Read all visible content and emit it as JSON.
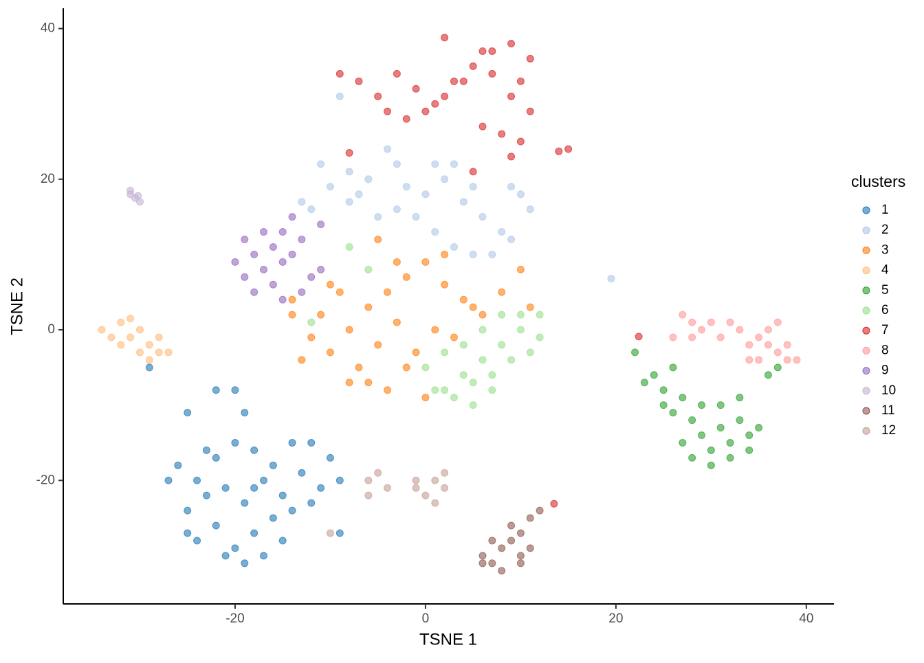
{
  "chart_data": {
    "type": "scatter",
    "x_label": "TSNE 1",
    "y_label": "TSNE 2",
    "legend_title": "clusters",
    "xlim": [
      -38.05,
      42.9
    ],
    "ylim": [
      -36.4,
      42.7
    ],
    "xticks": [
      -20,
      0,
      20,
      40
    ],
    "yticks": [
      -20,
      0,
      20,
      40
    ],
    "grid": false,
    "legend": "right",
    "series": [
      {
        "name": "1",
        "color": "#1f77b4",
        "x": [
          -26,
          -24,
          -22,
          -20,
          -18,
          -16,
          -14,
          -12,
          -10,
          -25,
          -23,
          -21,
          -19,
          -17,
          -15,
          -13,
          -11,
          -9,
          -24,
          -22,
          -20,
          -18,
          -16,
          -14,
          -12,
          -21,
          -19,
          -17,
          -25,
          -22,
          -20,
          -25,
          -9,
          -27,
          -23,
          -18,
          -15,
          -19,
          -29
        ],
        "y": [
          -18,
          -20,
          -17,
          -15,
          -16,
          -18,
          -15,
          -15,
          -17,
          -24,
          -22,
          -21,
          -23,
          -20,
          -22,
          -19,
          -21,
          -20,
          -28,
          -26,
          -29,
          -27,
          -25,
          -24,
          -23,
          -30,
          -31,
          -30,
          -27,
          -8,
          -8,
          -11,
          -27,
          -20,
          -16,
          -21,
          -28,
          -11,
          -5
        ]
      },
      {
        "name": "2",
        "color": "#aec7e8",
        "x": [
          -12,
          -10,
          -8,
          -6,
          -4,
          -3,
          -2,
          0,
          2,
          4,
          6,
          8,
          10,
          -5,
          -1,
          1,
          3,
          5,
          7,
          9,
          -11,
          -13,
          -7,
          -3,
          1,
          3,
          5,
          9,
          11,
          -9,
          19.5,
          -8
        ],
        "y": [
          16,
          19,
          21,
          20,
          24,
          22,
          19,
          18,
          20,
          17,
          15,
          13,
          18,
          15,
          15,
          13,
          11,
          10,
          10,
          12,
          22,
          17,
          18,
          16,
          22,
          22,
          19,
          19,
          16,
          31,
          6.8,
          17
        ]
      },
      {
        "name": "3",
        "color": "#ff7f0e",
        "x": [
          -14,
          -12,
          -10,
          -8,
          -6,
          -4,
          -2,
          0,
          2,
          4,
          6,
          8,
          -13,
          -11,
          -9,
          -7,
          -5,
          -3,
          -1,
          1,
          3,
          5,
          -6,
          -4,
          -2,
          0,
          -8,
          -10,
          10,
          -3,
          2,
          -14,
          -5,
          11
        ],
        "y": [
          2,
          -1,
          -3,
          0,
          3,
          5,
          7,
          9,
          6,
          4,
          2,
          5,
          -4,
          2,
          5,
          -5,
          -2,
          1,
          -3,
          0,
          -1,
          3,
          -7,
          -8,
          -5,
          -9,
          -7,
          6,
          8,
          9,
          10,
          4,
          12,
          3
        ]
      },
      {
        "name": "4",
        "color": "#ffbb78",
        "x": [
          -34,
          -32,
          -31,
          -30,
          -29,
          -28,
          -30,
          -32,
          -33,
          -29,
          -27,
          -31,
          -28
        ],
        "y": [
          0,
          1,
          -1,
          0,
          -2,
          -3,
          -3,
          -2,
          -1,
          -4,
          -3,
          1.5,
          -1
        ]
      },
      {
        "name": "5",
        "color": "#2ca02c",
        "x": [
          22,
          24,
          25,
          26,
          27,
          28,
          29,
          30,
          31,
          32,
          33,
          34,
          35,
          26,
          28,
          30,
          32,
          27,
          29,
          31,
          33,
          36,
          37,
          23,
          25,
          34
        ],
        "y": [
          -3,
          -6,
          -8,
          -5,
          -9,
          -12,
          -14,
          -16,
          -13,
          -15,
          -12,
          -14,
          -13,
          -11,
          -17,
          -18,
          -17,
          -15,
          -10,
          -10,
          -9,
          -6,
          -5,
          -7,
          -10,
          -16
        ]
      },
      {
        "name": "6",
        "color": "#98df8a",
        "x": [
          0,
          2,
          4,
          6,
          8,
          10,
          12,
          1,
          3,
          5,
          7,
          9,
          11,
          6,
          8,
          10,
          4,
          2,
          -8,
          -6,
          12,
          5,
          7,
          -12
        ],
        "y": [
          -5,
          -3,
          -6,
          -4,
          -2,
          0,
          -1,
          -8,
          -9,
          -7,
          -6,
          -4,
          -3,
          0,
          2,
          2,
          -2,
          -8,
          11,
          8,
          2,
          -10,
          -8,
          1
        ]
      },
      {
        "name": "7",
        "color": "#d62728",
        "x": [
          -9,
          -7,
          -5,
          -3,
          -1,
          1,
          3,
          5,
          7,
          9,
          11,
          -4,
          -2,
          0,
          2,
          4,
          6,
          8,
          10,
          11,
          9,
          7,
          10,
          6,
          2,
          -8,
          15,
          14,
          5,
          9,
          13.5,
          22.4
        ],
        "y": [
          34,
          33,
          31,
          34,
          32,
          30,
          33,
          35,
          37,
          38,
          36,
          29,
          28,
          29,
          31,
          33,
          27,
          26,
          25,
          29,
          31,
          34,
          33,
          37,
          38.8,
          23.5,
          24,
          23.7,
          21,
          23,
          -23.1,
          -0.9
        ]
      },
      {
        "name": "8",
        "color": "#ff9896",
        "x": [
          27,
          28,
          29,
          30,
          31,
          28,
          33,
          34,
          35,
          36,
          37,
          38,
          35,
          36,
          39,
          32,
          26,
          37,
          34,
          38
        ],
        "y": [
          2,
          1,
          0,
          1,
          -1,
          -1,
          0,
          -2,
          -1,
          0,
          -3,
          -4,
          -4,
          -2,
          -4,
          1,
          -1,
          1,
          -4,
          -2
        ]
      },
      {
        "name": "9",
        "color": "#9467bd",
        "x": [
          -19,
          -18,
          -17,
          -16,
          -15,
          -14,
          -13,
          -20,
          -19,
          -17,
          -16,
          -18,
          -12,
          -15,
          -14,
          -11,
          -15,
          -13,
          -11
        ],
        "y": [
          12,
          10,
          8,
          11,
          9,
          10,
          12,
          9,
          7,
          13,
          6,
          5,
          7,
          13,
          15,
          14,
          4,
          5,
          8
        ]
      },
      {
        "name": "10",
        "color": "#c5b0d5",
        "x": [
          -31,
          -30.5,
          -30,
          -31,
          -30.2
        ],
        "y": [
          18,
          17.5,
          17,
          18.5,
          17.8
        ]
      },
      {
        "name": "11",
        "color": "#8c564b",
        "x": [
          6,
          7,
          8,
          9,
          10,
          11,
          12,
          8,
          10,
          9,
          7,
          11,
          10,
          6
        ],
        "y": [
          -30,
          -31,
          -29,
          -28,
          -27,
          -25,
          -24,
          -32,
          -30,
          -26,
          -28,
          -29,
          -31,
          -31
        ]
      },
      {
        "name": "12",
        "color": "#c49c94",
        "x": [
          -6,
          -5,
          -4,
          -6,
          -1,
          0,
          1,
          2,
          1,
          -1,
          2,
          -10
        ],
        "y": [
          -20,
          -19,
          -21,
          -22,
          -21,
          -22,
          -20,
          -21,
          -23,
          -20,
          -19,
          -27
        ]
      }
    ]
  }
}
